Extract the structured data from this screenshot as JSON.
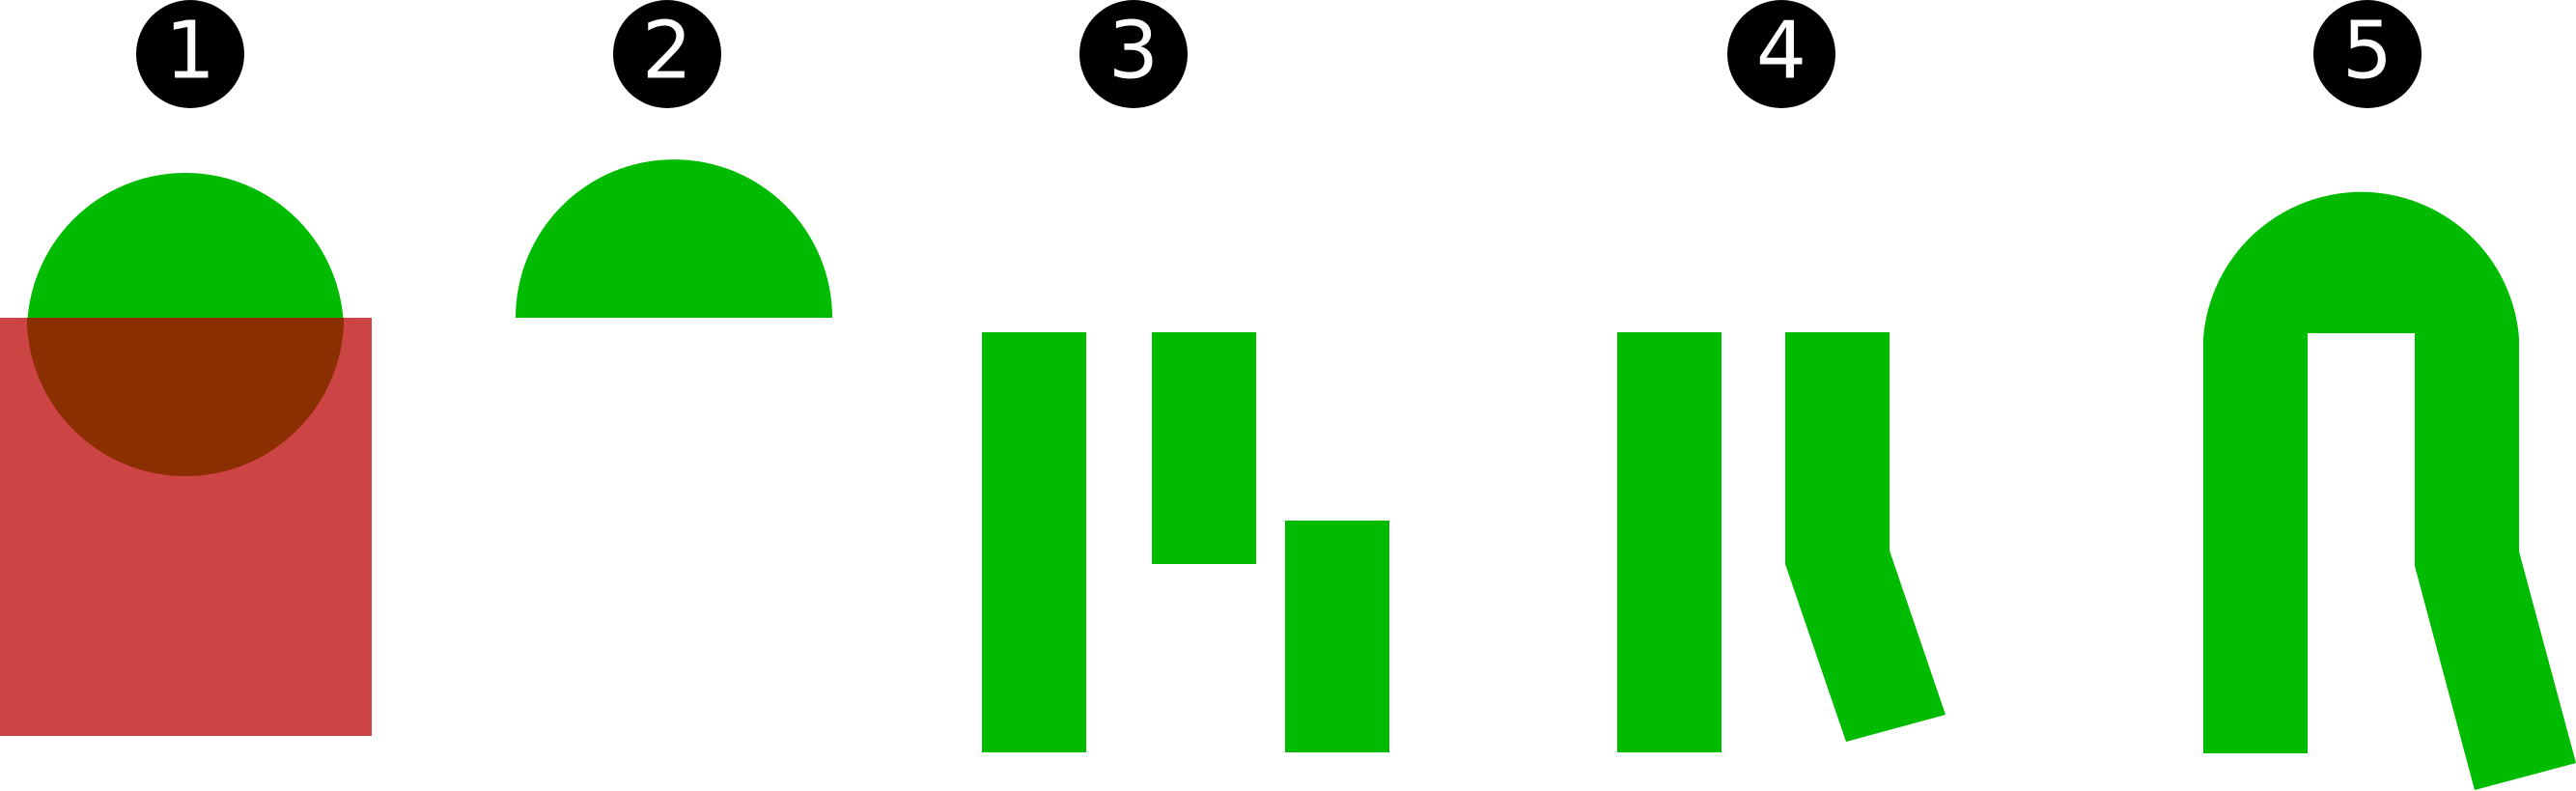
{
  "steps": [
    {
      "number": "1"
    },
    {
      "number": "2"
    },
    {
      "number": "3"
    },
    {
      "number": "4"
    },
    {
      "number": "5"
    }
  ],
  "colors": {
    "badge_fill": "#000000",
    "badge_text": "#ffffff",
    "shape_green": "#00bb00",
    "overlay_red": "#cc4444",
    "overlap_brown": "#8b2e00",
    "background": "#ffffff"
  }
}
